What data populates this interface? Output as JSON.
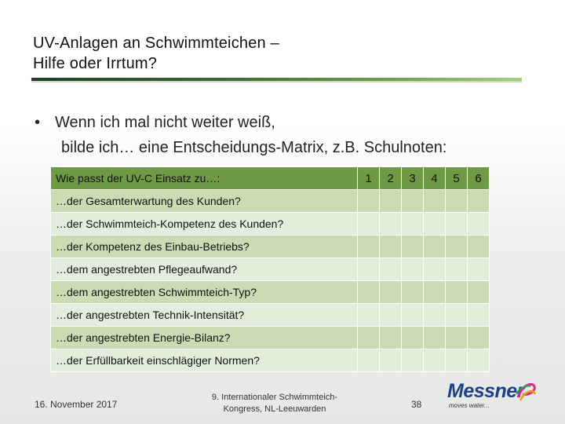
{
  "title": {
    "line1": "UV-Anlagen an Schwimmteichen –",
    "line2": "Hilfe oder Irrtum?"
  },
  "bullet": {
    "marker": "•",
    "line1": "Wenn ich mal nicht weiter weiß,",
    "line2": "bilde ich… eine Entscheidungs-Matrix, z.B. Schulnoten:"
  },
  "matrix": {
    "header": "Wie passt der UV-C Einsatz zu…:",
    "grades": [
      "1",
      "2",
      "3",
      "4",
      "5",
      "6"
    ],
    "rows": [
      "…der Gesamterwartung des Kunden?",
      "…der Schwimmteich-Kompetenz des Kunden?",
      "…der Kompetenz des Einbau-Betriebs?",
      "…dem angestrebten Pflegeaufwand?",
      "…dem angestrebten Schwimmteich-Typ?",
      "…der angestrebten Technik-Intensität?",
      "…der angestrebten Energie-Bilanz?",
      "…der Erfüllbarkeit einschlägiger Normen?"
    ]
  },
  "footer": {
    "date": "16. November 2017",
    "event_line1": "9. Internationaler Schwimmteich-",
    "event_line2": "Kongress, NL-Leeuwarden",
    "page": "38"
  },
  "logo": {
    "name": "Messner",
    "tagline": "moves water...",
    "brand_color": "#1b3f8b"
  }
}
